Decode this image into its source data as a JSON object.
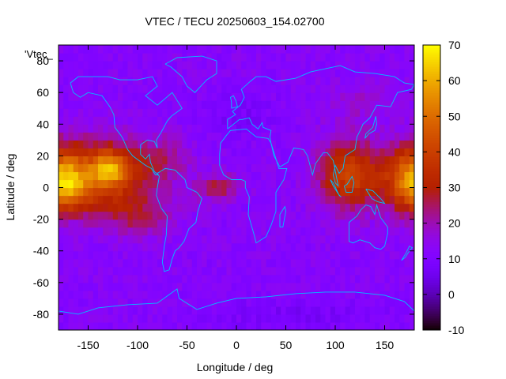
{
  "chart_data": {
    "type": "heatmap",
    "title": "VTEC / TECU 20250603_154.02700",
    "xlabel": "Longitude / deg",
    "ylabel": "Latitude / deg",
    "legend_key": "'Vtec_",
    "xlim": [
      -180,
      180
    ],
    "ylim": [
      -90,
      90
    ],
    "x_ticks": [
      -150,
      -100,
      -50,
      0,
      50,
      100,
      150
    ],
    "y_ticks": [
      -80,
      -60,
      -40,
      -20,
      0,
      20,
      40,
      60,
      80
    ],
    "colorbar": {
      "range": [
        -10,
        70
      ],
      "ticks": [
        -10,
        0,
        10,
        20,
        30,
        40,
        50,
        60,
        70
      ],
      "colormap": "gnuplot-pm3d-rgbformulae-7-5-15"
    },
    "grid": {
      "lon_step": 5,
      "lat_step": 5,
      "lon_start": -180,
      "lat_start": -90
    },
    "field_description": "Vertical total electron content; highs near 12.5 TECU background, peaks ~68 TECU at lon -135 lat 10",
    "coastline_color": "#00bfff"
  }
}
